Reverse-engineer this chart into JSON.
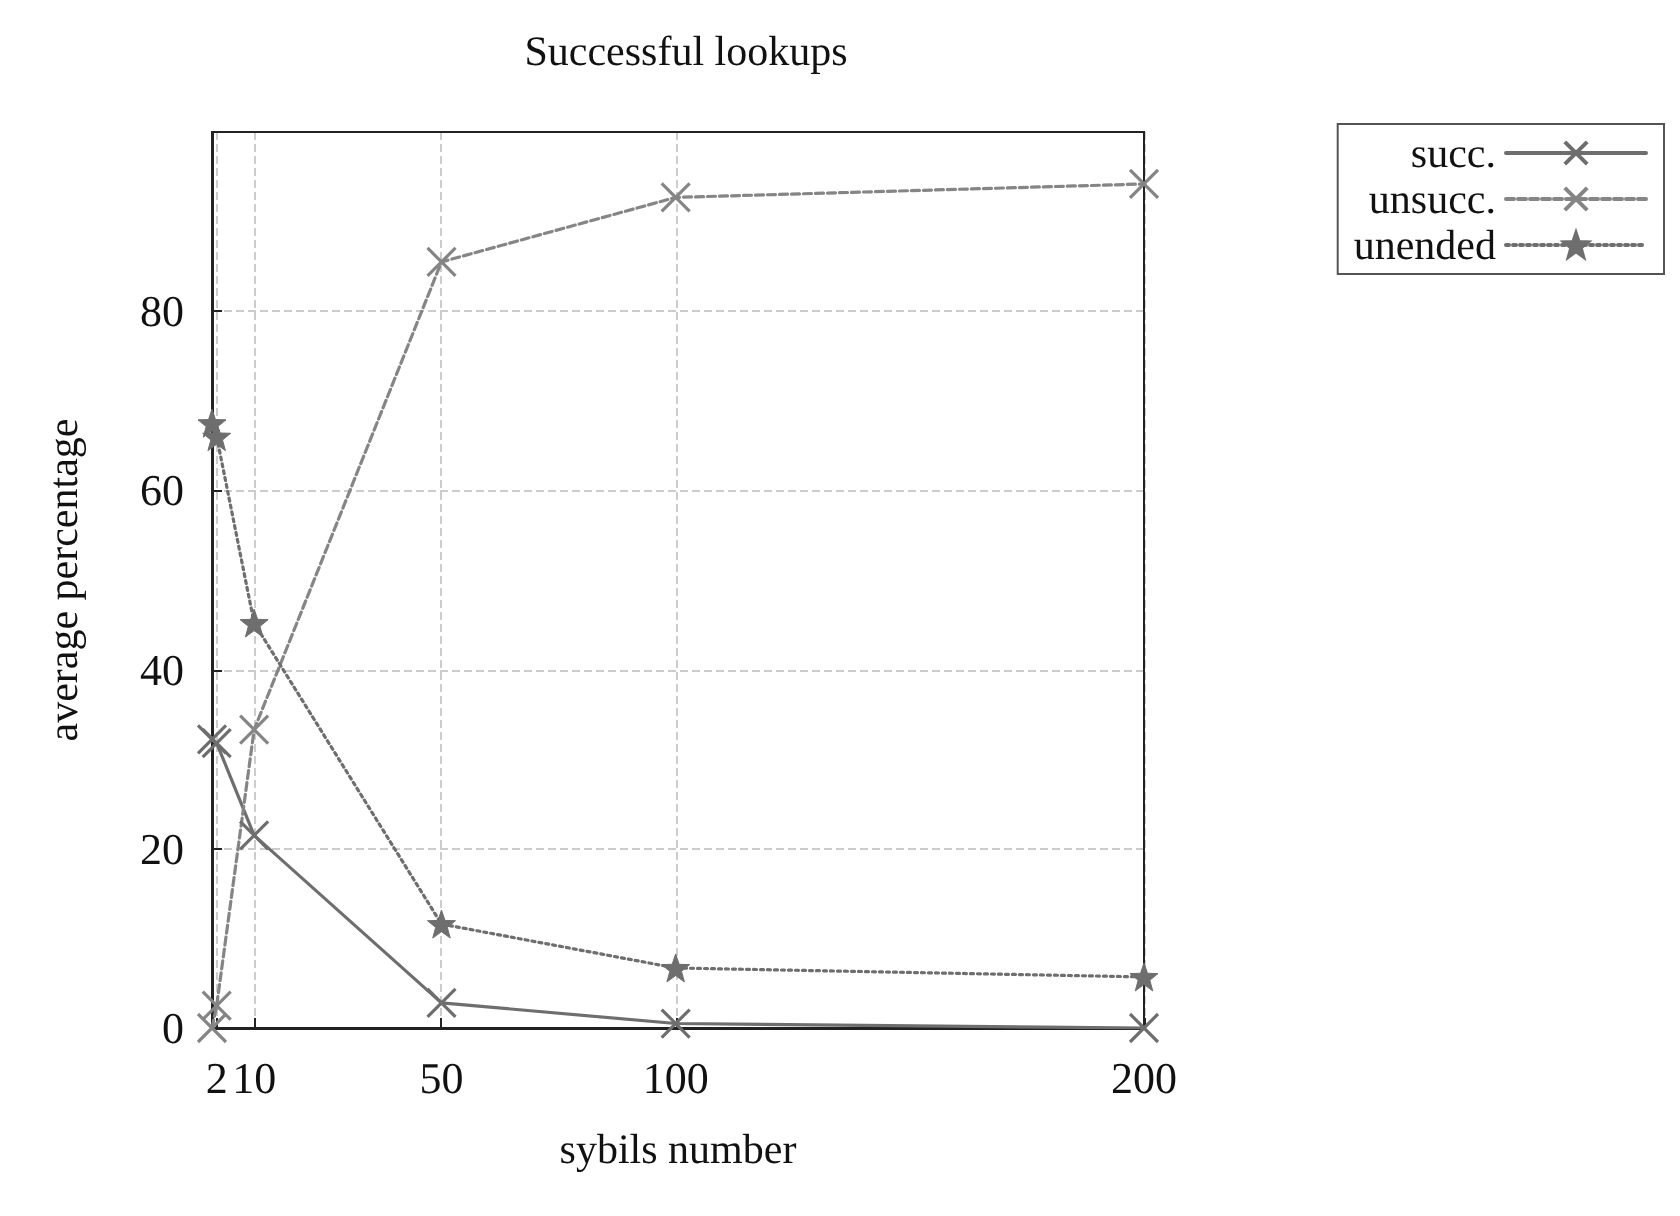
{
  "chart_data": {
    "type": "line",
    "title": "Successful lookups",
    "xlabel": "sybils number",
    "ylabel": "average percentage",
    "x": [
      1,
      2,
      10,
      50,
      100,
      200
    ],
    "xlim": [
      1,
      200
    ],
    "xticks": [
      2,
      10,
      50,
      100,
      200
    ],
    "ylim": [
      0,
      100
    ],
    "yticks": [
      0,
      20,
      40,
      60,
      80
    ],
    "grid": true,
    "legend": "top right",
    "series": [
      {
        "name": "succ.",
        "color": "#6e6e6e",
        "marker": "cross",
        "line_style": "solid",
        "values": [
          32.2,
          31.8,
          21.5,
          2.8,
          0.5,
          0
        ]
      },
      {
        "name": "unsucc.",
        "color": "#858585",
        "marker": "cross",
        "line_style": "dashed",
        "values": [
          0,
          2.5,
          33.3,
          85.5,
          92.7,
          94.2
        ]
      },
      {
        "name": "unended",
        "color": "#6e6e6e",
        "marker": "star",
        "line_style": "dotted",
        "values": [
          67.5,
          66,
          45.2,
          11.6,
          6.7,
          5.7
        ]
      }
    ]
  }
}
